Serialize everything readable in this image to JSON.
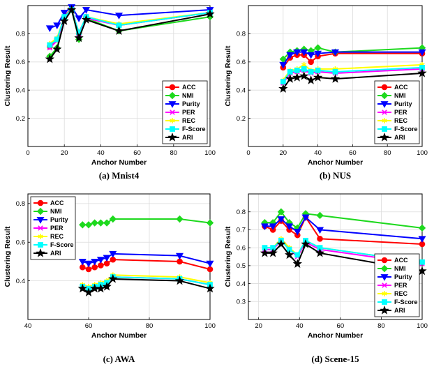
{
  "series_styles": [
    {
      "name": "ACC",
      "color": "#ff0000",
      "marker": "circle"
    },
    {
      "name": "NMI",
      "color": "#1ed91e",
      "marker": "diamond"
    },
    {
      "name": "Purity",
      "color": "#0000ff",
      "marker": "triangle-down"
    },
    {
      "name": "PER",
      "color": "#ff00ff",
      "marker": "x"
    },
    {
      "name": "REC",
      "color": "#ffff00",
      "marker": "star"
    },
    {
      "name": "F-Score",
      "color": "#00ffff",
      "marker": "square"
    },
    {
      "name": "ARI",
      "color": "#000000",
      "marker": "pentagram"
    }
  ],
  "chart_data": [
    {
      "type": "line",
      "caption": "(a) Mnist4",
      "xlabel": "Anchor Number",
      "ylabel": "Clustering Result",
      "xlim": [
        0,
        100
      ],
      "ylim": [
        0,
        1
      ],
      "xticks": [
        0,
        20,
        40,
        60,
        80,
        100
      ],
      "yticks": [
        0.2,
        0.4,
        0.6,
        0.8
      ],
      "ytick_labels": [
        "0.2",
        "0.4",
        "0.6",
        "0.8"
      ],
      "legend": "bottom-right",
      "x": [
        12,
        16,
        20,
        24,
        28,
        32,
        50,
        100
      ],
      "series": [
        {
          "name": "ACC",
          "values": [
            0.71,
            0.76,
            0.92,
            0.98,
            0.8,
            0.92,
            0.86,
            0.95
          ]
        },
        {
          "name": "NMI",
          "values": [
            0.64,
            0.7,
            0.9,
            0.97,
            0.76,
            0.91,
            0.82,
            0.92
          ]
        },
        {
          "name": "Purity",
          "values": [
            0.84,
            0.86,
            0.95,
            0.99,
            0.91,
            0.97,
            0.93,
            0.97
          ]
        },
        {
          "name": "PER",
          "values": [
            0.7,
            0.75,
            0.91,
            0.97,
            0.8,
            0.91,
            0.86,
            0.95
          ]
        },
        {
          "name": "REC",
          "values": [
            0.73,
            0.77,
            0.92,
            0.97,
            0.81,
            0.92,
            0.87,
            0.95
          ]
        },
        {
          "name": "F-Score",
          "values": [
            0.72,
            0.76,
            0.92,
            0.97,
            0.81,
            0.92,
            0.86,
            0.95
          ]
        },
        {
          "name": "ARI",
          "values": [
            0.62,
            0.69,
            0.89,
            0.97,
            0.77,
            0.9,
            0.82,
            0.94
          ]
        }
      ]
    },
    {
      "type": "line",
      "caption": "(b) NUS",
      "xlabel": "Anchor Number",
      "ylabel": "Clustering Result",
      "xlim": [
        0,
        100
      ],
      "ylim": [
        0,
        1
      ],
      "xticks": [
        0,
        20,
        40,
        60,
        80,
        100
      ],
      "yticks": [
        0.2,
        0.4,
        0.6,
        0.8
      ],
      "ytick_labels": [
        "0.2",
        "0.4",
        "0.6",
        "0.8"
      ],
      "legend": "bottom-right",
      "x": [
        20,
        24,
        28,
        32,
        36,
        40,
        50,
        100
      ],
      "series": [
        {
          "name": "ACC",
          "values": [
            0.56,
            0.63,
            0.65,
            0.65,
            0.6,
            0.64,
            0.66,
            0.66
          ]
        },
        {
          "name": "NMI",
          "values": [
            0.62,
            0.67,
            0.68,
            0.69,
            0.68,
            0.7,
            0.67,
            0.7
          ]
        },
        {
          "name": "Purity",
          "values": [
            0.58,
            0.65,
            0.67,
            0.67,
            0.65,
            0.66,
            0.67,
            0.67
          ]
        },
        {
          "name": "PER",
          "values": [
            0.45,
            0.52,
            0.53,
            0.54,
            0.52,
            0.53,
            0.52,
            0.55
          ]
        },
        {
          "name": "REC",
          "values": [
            0.47,
            0.54,
            0.55,
            0.58,
            0.54,
            0.55,
            0.55,
            0.58
          ]
        },
        {
          "name": "F-Score",
          "values": [
            0.46,
            0.53,
            0.54,
            0.55,
            0.53,
            0.54,
            0.53,
            0.56
          ]
        },
        {
          "name": "ARI",
          "values": [
            0.41,
            0.48,
            0.49,
            0.5,
            0.47,
            0.49,
            0.48,
            0.52
          ]
        }
      ]
    },
    {
      "type": "line",
      "caption": "(c) AWA",
      "xlabel": "Anchor Number",
      "ylabel": "Clustering Result",
      "xlim": [
        40,
        100
      ],
      "ylim": [
        0.2,
        0.85
      ],
      "xticks": [
        40,
        60,
        80,
        100
      ],
      "yticks": [
        0.4,
        0.6,
        0.8
      ],
      "ytick_labels": [
        "0.4",
        "0.6",
        "0.8"
      ],
      "legend": "top-left",
      "x": [
        58,
        60,
        62,
        64,
        66,
        68,
        90,
        100
      ],
      "series": [
        {
          "name": "ACC",
          "values": [
            0.47,
            0.46,
            0.47,
            0.48,
            0.49,
            0.51,
            0.5,
            0.46
          ]
        },
        {
          "name": "NMI",
          "values": [
            0.69,
            0.69,
            0.7,
            0.7,
            0.7,
            0.72,
            0.72,
            0.7
          ]
        },
        {
          "name": "Purity",
          "values": [
            0.5,
            0.49,
            0.5,
            0.51,
            0.52,
            0.54,
            0.53,
            0.49
          ]
        },
        {
          "name": "PER",
          "values": [
            0.37,
            0.36,
            0.37,
            0.38,
            0.39,
            0.42,
            0.41,
            0.38
          ]
        },
        {
          "name": "REC",
          "values": [
            0.38,
            0.37,
            0.38,
            0.39,
            0.4,
            0.43,
            0.42,
            0.39
          ]
        },
        {
          "name": "F-Score",
          "values": [
            0.37,
            0.36,
            0.37,
            0.38,
            0.39,
            0.42,
            0.41,
            0.38
          ]
        },
        {
          "name": "ARI",
          "values": [
            0.36,
            0.34,
            0.36,
            0.36,
            0.37,
            0.41,
            0.4,
            0.36
          ]
        }
      ]
    },
    {
      "type": "line",
      "caption": "(d) Scene-15",
      "xlabel": "Anchor Number",
      "ylabel": "Clustering Result",
      "xlim": [
        15,
        100
      ],
      "ylim": [
        0.2,
        0.9
      ],
      "xticks": [
        20,
        40,
        60,
        80,
        100
      ],
      "yticks": [
        0.3,
        0.4,
        0.5,
        0.6,
        0.7,
        0.8
      ],
      "ytick_labels": [
        "0.3",
        "0.4",
        "0.5",
        "0.6",
        "0.7",
        "0.8"
      ],
      "legend": "bottom-right",
      "x": [
        23,
        27,
        31,
        35,
        39,
        43,
        50,
        100
      ],
      "series": [
        {
          "name": "ACC",
          "values": [
            0.72,
            0.7,
            0.75,
            0.7,
            0.67,
            0.77,
            0.65,
            0.62
          ]
        },
        {
          "name": "NMI",
          "values": [
            0.74,
            0.74,
            0.8,
            0.74,
            0.71,
            0.79,
            0.78,
            0.71
          ]
        },
        {
          "name": "Purity",
          "values": [
            0.72,
            0.72,
            0.76,
            0.72,
            0.69,
            0.77,
            0.7,
            0.65
          ]
        },
        {
          "name": "PER",
          "values": [
            0.59,
            0.59,
            0.64,
            0.59,
            0.55,
            0.63,
            0.59,
            0.51
          ]
        },
        {
          "name": "REC",
          "values": [
            0.6,
            0.6,
            0.65,
            0.6,
            0.56,
            0.64,
            0.6,
            0.52
          ]
        },
        {
          "name": "F-Score",
          "values": [
            0.6,
            0.6,
            0.64,
            0.59,
            0.56,
            0.64,
            0.6,
            0.52
          ]
        },
        {
          "name": "ARI",
          "values": [
            0.57,
            0.57,
            0.62,
            0.56,
            0.51,
            0.62,
            0.57,
            0.47
          ]
        }
      ]
    }
  ]
}
